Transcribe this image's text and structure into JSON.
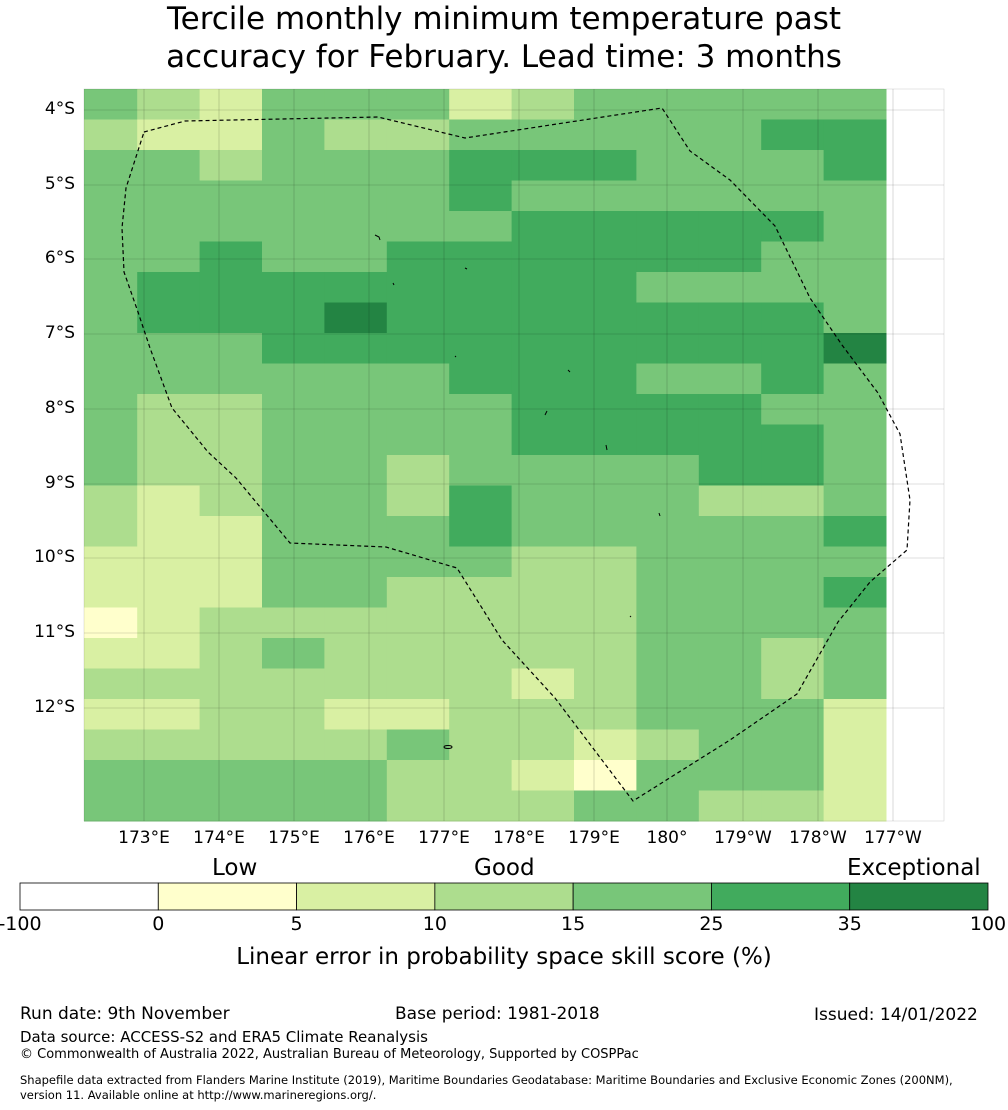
{
  "title": {
    "line1": "Tercile monthly minimum temperature past",
    "line2": "accuracy for February. Lead time: 3 months"
  },
  "lat_labels": [
    "4°S",
    "5°S",
    "6°S",
    "7°S",
    "8°S",
    "9°S",
    "10°S",
    "11°S",
    "12°S"
  ],
  "lon_labels": [
    "173°E",
    "174°E",
    "175°E",
    "176°E",
    "177°E",
    "178°E",
    "179°E",
    "180°",
    "179°W",
    "178°W",
    "177°W"
  ],
  "categories": {
    "low": "Low",
    "good": "Good",
    "exceptional": "Exceptional"
  },
  "colorbar": {
    "ticks": [
      "-100",
      "0",
      "5",
      "10",
      "15",
      "25",
      "35",
      "100"
    ],
    "colors": [
      "#ffffff",
      "#ffffcc",
      "#d9f0a3",
      "#addd8e",
      "#78c679",
      "#41ab5d",
      "#238443"
    ],
    "title": "Linear error in probability space skill score (%)"
  },
  "footer": {
    "run_date": "Run date: 9th November",
    "base_period": "Base period: 1981-2018",
    "issued": "Issued: 14/01/2022",
    "data_source": "Data source: ACCESS-S2 and ERA5 Climate Reanalysis",
    "copyright": "© Commonwealth of Australia 2022, Australian Bureau of Meteorology, Supported by COSPPac",
    "shapefile_1": "Shapefile data extracted from Flanders Marine Institute (2019), Maritime Boundaries Geodatabase: Maritime Boundaries and Exclusive Economic Zones (200NM),",
    "shapefile_2": "version 11. Available online at http://www.marineregions.org/."
  },
  "grid": {
    "rows": [
      "4324442344444",
      "3224334444455",
      "4434445554445",
      "4444445444444",
      "4444444555554",
      "4454455555544",
      "4555555554444",
      "4555655555554",
      "4445555555556",
      "4444445554454",
      "4334444555544",
      "4334444555554",
      "4334434444554",
      "3234435444334",
      "3224445444445",
      "2224444334444",
      "2224433334445",
      "1233333334444",
      "2234333334434",
      "3333333234434",
      "2233223334442",
      "3333343323442",
      "4444433214442",
      "4444433344332"
    ]
  }
}
